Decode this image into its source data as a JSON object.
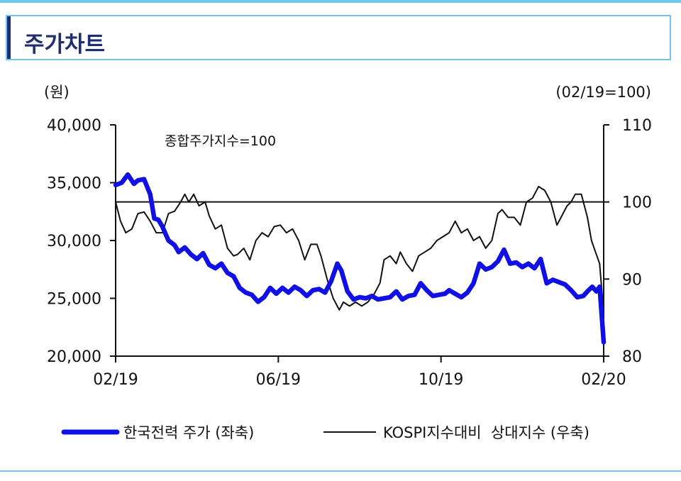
{
  "header": {
    "title": "주가차트"
  },
  "colors": {
    "accent": "#6ec6ea",
    "title": "#1f2e73",
    "series_price": "#1010e6",
    "series_rel": "#111111"
  },
  "chart_data": {
    "type": "line",
    "left_unit": "(원)",
    "right_unit": "(02/19=100)",
    "annotation": "종합주가지수=100",
    "x_ticks": [
      "02/19",
      "06/19",
      "10/19",
      "02/20"
    ],
    "x_range": [
      0,
      12
    ],
    "left_axis": {
      "ticks": [
        "20,000",
        "25,000",
        "30,000",
        "35,000",
        "40,000"
      ],
      "values": [
        20000,
        25000,
        30000,
        35000,
        40000
      ],
      "ylim": [
        20000,
        40000
      ]
    },
    "right_axis": {
      "ticks": [
        "80",
        "90",
        "100",
        "110"
      ],
      "values": [
        80,
        90,
        100,
        110
      ],
      "ylim": [
        80,
        110
      ]
    },
    "reference_line": 100,
    "series": [
      {
        "name": "한국전력 주가 (좌축)",
        "axis": "left",
        "x": [
          0,
          0.15,
          0.3,
          0.45,
          0.55,
          0.7,
          0.85,
          0.95,
          1.05,
          1.15,
          1.3,
          1.45,
          1.55,
          1.7,
          1.85,
          2.0,
          2.15,
          2.3,
          2.45,
          2.6,
          2.75,
          2.9,
          3.05,
          3.2,
          3.35,
          3.5,
          3.65,
          3.8,
          3.95,
          4.1,
          4.25,
          4.4,
          4.55,
          4.7,
          4.85,
          5.0,
          5.15,
          5.3,
          5.45,
          5.55,
          5.7,
          5.85,
          6.0,
          6.15,
          6.3,
          6.45,
          6.6,
          6.75,
          6.9,
          7.05,
          7.2,
          7.35,
          7.5,
          7.65,
          7.8,
          7.95,
          8.1,
          8.2,
          8.35,
          8.5,
          8.65,
          8.8,
          8.95,
          9.1,
          9.25,
          9.4,
          9.55,
          9.7,
          9.85,
          10.0,
          10.15,
          10.3,
          10.45,
          10.6,
          10.75,
          10.9,
          11.05,
          11.2,
          11.35,
          11.5,
          11.6,
          11.72,
          11.82,
          11.9,
          12.0
        ],
        "values": [
          34800,
          35000,
          35700,
          34900,
          35200,
          35300,
          34000,
          31900,
          31800,
          31200,
          30000,
          29600,
          29000,
          29400,
          28800,
          28400,
          28900,
          27900,
          27600,
          28000,
          27200,
          26900,
          25900,
          25500,
          25300,
          24700,
          25100,
          25900,
          25400,
          25900,
          25500,
          26000,
          25700,
          25200,
          25700,
          25800,
          25500,
          26500,
          28000,
          27400,
          25600,
          24900,
          25100,
          25000,
          25200,
          24900,
          25000,
          25100,
          25600,
          24900,
          25200,
          25300,
          26300,
          25700,
          25200,
          25300,
          25400,
          25700,
          25400,
          25100,
          25500,
          26300,
          28000,
          27500,
          27700,
          28200,
          29200,
          28000,
          28100,
          27700,
          28000,
          27600,
          28400,
          26300,
          26600,
          26400,
          26200,
          25700,
          25100,
          25200,
          25600,
          26000,
          25600,
          26000,
          21200
        ]
      },
      {
        "name": "KOSPI지수대비  상대지수 (우축)",
        "axis": "right",
        "x": [
          0,
          0.12,
          0.25,
          0.4,
          0.55,
          0.7,
          0.85,
          1.0,
          1.15,
          1.3,
          1.45,
          1.6,
          1.7,
          1.8,
          1.92,
          2.05,
          2.2,
          2.3,
          2.45,
          2.6,
          2.75,
          2.9,
          3.0,
          3.15,
          3.3,
          3.45,
          3.6,
          3.75,
          3.9,
          4.05,
          4.2,
          4.35,
          4.5,
          4.65,
          4.8,
          4.95,
          5.05,
          5.2,
          5.35,
          5.5,
          5.6,
          5.75,
          5.9,
          6.05,
          6.2,
          6.35,
          6.5,
          6.6,
          6.75,
          6.9,
          7.0,
          7.15,
          7.3,
          7.45,
          7.6,
          7.75,
          7.9,
          8.05,
          8.2,
          8.35,
          8.5,
          8.65,
          8.8,
          8.95,
          9.1,
          9.25,
          9.4,
          9.5,
          9.65,
          9.8,
          9.95,
          10.1,
          10.25,
          10.4,
          10.55,
          10.7,
          10.85,
          11.0,
          11.1,
          11.2,
          11.3,
          11.45,
          11.6,
          11.7,
          11.8,
          11.9,
          12.0
        ],
        "values": [
          100,
          97.5,
          96,
          96.5,
          98.5,
          98.7,
          97.5,
          96,
          96,
          98.5,
          98.8,
          100,
          101,
          100,
          101,
          99.5,
          100,
          98.2,
          96.5,
          97,
          94,
          93,
          93.2,
          94,
          92.5,
          95,
          96,
          95.5,
          96.8,
          97,
          96,
          96.5,
          95,
          92.5,
          94.5,
          94.5,
          93,
          90,
          87.5,
          86,
          87,
          86.5,
          87,
          86.5,
          87,
          88,
          89.5,
          92.5,
          93,
          92,
          93.5,
          92,
          91,
          93,
          93.5,
          94,
          95,
          95.5,
          96,
          97.5,
          96,
          96.5,
          95,
          95.5,
          94,
          95,
          98.5,
          99,
          98,
          98,
          97,
          100,
          100.5,
          102,
          101.5,
          100,
          97,
          98.5,
          99.5,
          100,
          101,
          101,
          98,
          95,
          93.5,
          92,
          85.5
        ]
      }
    ]
  }
}
